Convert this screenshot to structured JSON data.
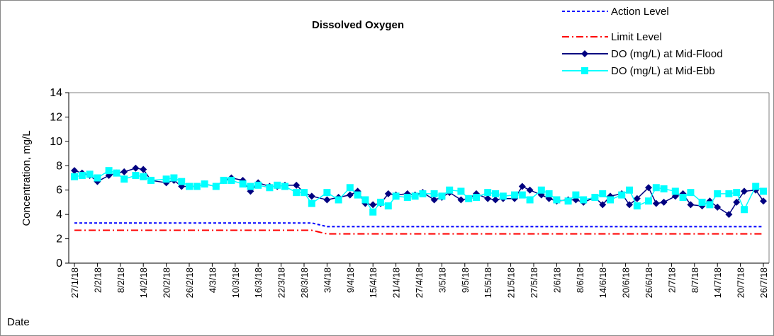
{
  "chart_data": {
    "type": "line",
    "title": "Dissolved Oxygen",
    "x_label": "Date",
    "y_label": "Concentration, mg/L",
    "x": [
      "27/1/18",
      "29/1/18",
      "31/1/18",
      "2/2/18",
      "5/2/18",
      "7/2/18",
      "9/2/18",
      "12/2/18",
      "14/2/18",
      "16/2/18",
      "20/2/18",
      "22/2/18",
      "24/2/18",
      "26/2/18",
      "28/2/18",
      "2/3/18",
      "5/3/18",
      "7/3/18",
      "9/3/18",
      "12/3/18",
      "14/3/18",
      "16/3/18",
      "19/3/18",
      "21/3/18",
      "23/3/18",
      "26/3/18",
      "28/3/18",
      "30/3/18",
      "3/4/18",
      "6/4/18",
      "9/4/18",
      "11/4/18",
      "13/4/18",
      "15/4/18",
      "17/4/18",
      "19/4/18",
      "21/4/18",
      "24/4/18",
      "26/4/18",
      "28/4/18",
      "1/5/18",
      "3/5/18",
      "5/5/18",
      "8/5/18",
      "10/5/18",
      "12/5/18",
      "15/5/18",
      "17/5/18",
      "19/5/18",
      "22/5/18",
      "24/5/18",
      "26/5/18",
      "29/5/18",
      "31/5/18",
      "2/6/18",
      "5/6/18",
      "7/6/18",
      "9/6/18",
      "12/6/18",
      "14/6/18",
      "16/6/18",
      "19/6/18",
      "21/6/18",
      "23/6/18",
      "26/6/18",
      "28/6/18",
      "30/6/18",
      "3/7/18",
      "5/7/18",
      "7/7/18",
      "10/7/18",
      "12/7/18",
      "14/7/18",
      "17/7/18",
      "19/7/18",
      "21/7/18",
      "24/7/18",
      "26/7/18"
    ],
    "series": [
      {
        "name": "Action Level",
        "color": "#0000ff",
        "line_style": "dashed",
        "marker": "none",
        "values": [
          3.3,
          3.3,
          3.3,
          3.3,
          3.3,
          3.3,
          3.3,
          3.3,
          3.3,
          3.3,
          3.3,
          3.3,
          3.3,
          3.3,
          3.3,
          3.3,
          3.3,
          3.3,
          3.3,
          3.3,
          3.3,
          3.3,
          3.3,
          3.3,
          3.3,
          3.3,
          3.3,
          3.3,
          3,
          3,
          3,
          3,
          3,
          3,
          3,
          3,
          3,
          3,
          3,
          3,
          3,
          3,
          3,
          3,
          3,
          3,
          3,
          3,
          3,
          3,
          3,
          3,
          3,
          3,
          3,
          3,
          3,
          3,
          3,
          3,
          3,
          3,
          3,
          3,
          3,
          3,
          3,
          3,
          3,
          3,
          3,
          3,
          3,
          3,
          3,
          3,
          3,
          3
        ]
      },
      {
        "name": "Limit Level",
        "color": "#ff0000",
        "line_style": "dashdot",
        "marker": "none",
        "values": [
          2.7,
          2.7,
          2.7,
          2.7,
          2.7,
          2.7,
          2.7,
          2.7,
          2.7,
          2.7,
          2.7,
          2.7,
          2.7,
          2.7,
          2.7,
          2.7,
          2.7,
          2.7,
          2.7,
          2.7,
          2.7,
          2.7,
          2.7,
          2.7,
          2.7,
          2.7,
          2.7,
          2.7,
          2.4,
          2.4,
          2.4,
          2.4,
          2.4,
          2.4,
          2.4,
          2.4,
          2.4,
          2.4,
          2.4,
          2.4,
          2.4,
          2.4,
          2.4,
          2.4,
          2.4,
          2.4,
          2.4,
          2.4,
          2.4,
          2.4,
          2.4,
          2.4,
          2.4,
          2.4,
          2.4,
          2.4,
          2.4,
          2.4,
          2.4,
          2.4,
          2.4,
          2.4,
          2.4,
          2.4,
          2.4,
          2.4,
          2.4,
          2.4,
          2.4,
          2.4,
          2.4,
          2.4,
          2.4,
          2.4,
          2.4,
          2.4,
          2.4,
          2.4
        ]
      },
      {
        "name": "DO (mg/L) at Mid-Flood",
        "color": "#000080",
        "line_style": "solid",
        "marker": "diamond",
        "values": [
          7.6,
          7.4,
          7.2,
          6.7,
          7.2,
          7.4,
          7.5,
          7.8,
          7.7,
          6.8,
          6.6,
          6.8,
          6.3,
          6.3,
          6.3,
          6.5,
          6.3,
          6.8,
          7.0,
          6.8,
          5.9,
          6.6,
          6.3,
          6.3,
          6.4,
          6.4,
          5.8,
          5.5,
          5.2,
          5.4,
          5.6,
          5.9,
          4.9,
          4.8,
          4.9,
          5.7,
          5.6,
          5.7,
          5.6,
          5.8,
          5.2,
          5.4,
          5.8,
          5.2,
          5.3,
          5.7,
          5.3,
          5.2,
          5.3,
          5.3,
          6.3,
          6.0,
          5.6,
          5.3,
          5.1,
          5.2,
          5.2,
          5.0,
          5.4,
          4.8,
          5.5,
          5.7,
          4.8,
          5.3,
          6.2,
          4.9,
          5.0,
          5.5,
          5.7,
          4.8,
          4.7,
          5.1,
          4.6,
          4.0,
          5.0,
          5.9,
          6.0,
          5.1
        ]
      },
      {
        "name": "DO (mg/L) at Mid-Ebb",
        "color": "#00ffff",
        "line_style": "solid",
        "marker": "square",
        "values": [
          7.1,
          7.2,
          7.3,
          7.0,
          7.6,
          7.4,
          6.9,
          7.2,
          7.1,
          6.8,
          6.9,
          7.0,
          6.7,
          6.3,
          6.3,
          6.5,
          6.3,
          6.8,
          6.8,
          6.5,
          6.3,
          6.4,
          6.2,
          6.4,
          6.3,
          5.8,
          5.8,
          4.9,
          5.8,
          5.2,
          6.2,
          5.6,
          5.2,
          4.2,
          5.0,
          4.7,
          5.5,
          5.4,
          5.5,
          5.7,
          5.7,
          5.5,
          6.0,
          5.9,
          5.3,
          5.4,
          5.8,
          5.7,
          5.5,
          5.6,
          5.6,
          5.2,
          6.0,
          5.7,
          5.2,
          5.1,
          5.6,
          5.2,
          5.4,
          5.7,
          5.2,
          5.6,
          6.0,
          4.7,
          5.1,
          6.2,
          6.1,
          5.9,
          5.4,
          5.8,
          5.0,
          4.8,
          5.7,
          5.7,
          5.8,
          4.4,
          6.3,
          5.9
        ]
      }
    ],
    "ylim": [
      0,
      14
    ],
    "yticks": [
      0,
      2,
      4,
      6,
      8,
      10,
      12,
      14
    ],
    "xticks": [
      "27/1/18",
      "2/2/18",
      "8/2/18",
      "14/2/18",
      "20/2/18",
      "26/2/18",
      "4/3/18",
      "10/3/18",
      "16/3/18",
      "22/3/18",
      "28/3/18",
      "3/4/18",
      "9/4/18",
      "15/4/18",
      "21/4/18",
      "27/4/18",
      "3/5/18",
      "9/5/18",
      "15/5/18",
      "21/5/18",
      "27/5/18",
      "2/6/18",
      "8/6/18",
      "14/6/18",
      "20/6/18",
      "26/6/18",
      "2/7/18",
      "8/7/18",
      "14/7/18",
      "20/7/18",
      "26/7/18"
    ],
    "grid": false,
    "legend": "top-right"
  }
}
